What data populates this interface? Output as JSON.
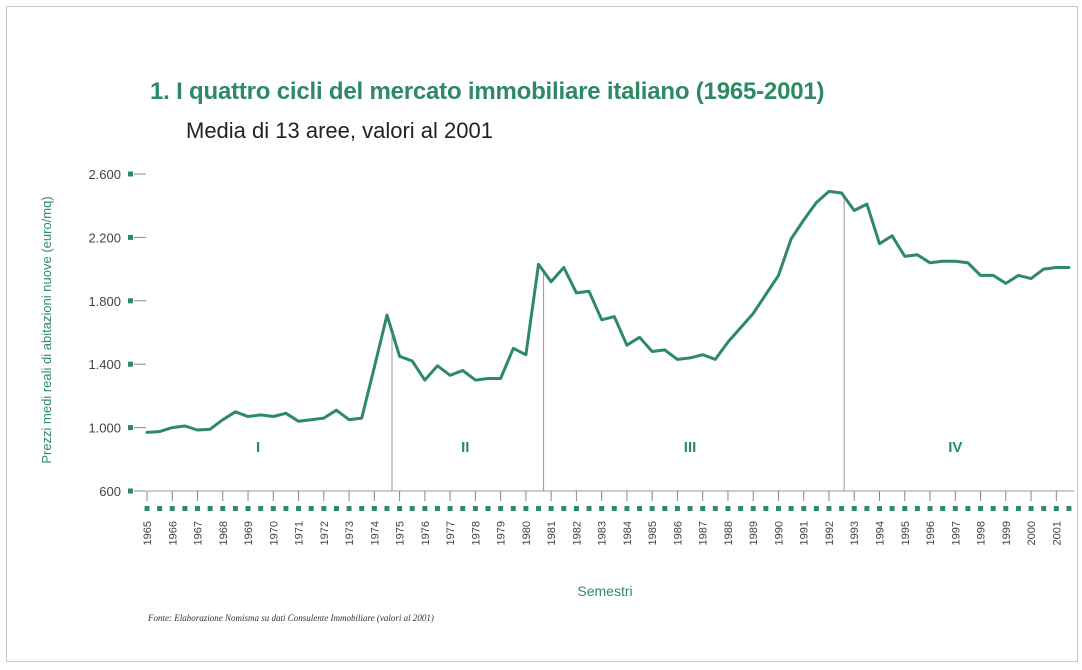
{
  "chart_data": {
    "type": "line",
    "title": "1. I quattro cicli del mercato immobiliare italiano (1965-2001)",
    "subtitle": "Media di 13 aree, valori al 2001",
    "ylabel": "Prezzi medi reali di abitazioni nuove (euro/mq)",
    "xlabel": "Semestri",
    "ylim": [
      600,
      2600
    ],
    "xlim": [
      1965,
      2001.7
    ],
    "y_ticks": [
      "600",
      "1.000",
      "1.400",
      "1.800",
      "2.200",
      "2.600"
    ],
    "y_tick_values": [
      600,
      1000,
      1400,
      1800,
      2200,
      2600
    ],
    "x_ticks": [
      "1965",
      "1966",
      "1967",
      "1968",
      "1969",
      "1970",
      "1971",
      "1972",
      "1973",
      "1974",
      "1975",
      "1976",
      "1977",
      "1978",
      "1979",
      "1980",
      "1981",
      "1982",
      "1983",
      "1984",
      "1985",
      "1986",
      "1987",
      "1988",
      "1989",
      "1990",
      "1991",
      "1992",
      "1993",
      "1994",
      "1995",
      "1996",
      "1997",
      "1998",
      "1999",
      "2000",
      "2001"
    ],
    "grid": false,
    "legend": "none",
    "series": [
      {
        "color": "#2e8a64",
        "x": [
          1965,
          1965.5,
          1966,
          1966.5,
          1967,
          1967.5,
          1968,
          1968.5,
          1969,
          1969.5,
          1970,
          1970.5,
          1971,
          1971.5,
          1972,
          1972.5,
          1973,
          1973.5,
          1974,
          1974.5,
          1975,
          1975.5,
          1976,
          1976.5,
          1977,
          1977.5,
          1978,
          1978.5,
          1979,
          1979.5,
          1980,
          1980.5,
          1981,
          1981.5,
          1982,
          1982.5,
          1983,
          1983.5,
          1984,
          1984.5,
          1985,
          1985.5,
          1986,
          1986.5,
          1987,
          1987.5,
          1988,
          1988.5,
          1989,
          1989.5,
          1990,
          1990.5,
          1991,
          1991.5,
          1992,
          1992.5,
          1993,
          1993.5,
          1994,
          1994.5,
          1995,
          1995.5,
          1996,
          1996.5,
          1997,
          1997.5,
          1998,
          1998.5,
          1999,
          1999.5,
          2000,
          2000.5,
          2001,
          2001.5
        ],
        "y": [
          970,
          975,
          1000,
          1010,
          985,
          990,
          1050,
          1100,
          1070,
          1080,
          1070,
          1090,
          1040,
          1050,
          1060,
          1110,
          1050,
          1060,
          1380,
          1710,
          1450,
          1420,
          1300,
          1390,
          1330,
          1360,
          1300,
          1310,
          1310,
          1500,
          1460,
          2030,
          1920,
          2010,
          1850,
          1860,
          1680,
          1700,
          1520,
          1570,
          1480,
          1490,
          1430,
          1440,
          1460,
          1430,
          1540,
          1630,
          1720,
          1840,
          1960,
          2190,
          2310,
          2420,
          2490,
          2480,
          2370,
          2410,
          2160,
          2210,
          2080,
          2090,
          2040,
          2050,
          2050,
          2040,
          1960,
          1960,
          1910,
          1960,
          1940,
          2000,
          2010,
          2010
        ]
      }
    ],
    "cycle_boundaries": [
      1974.7,
      1980.7,
      1992.6
    ],
    "cycle_labels": [
      {
        "label": "I",
        "x": 1969.4
      },
      {
        "label": "II",
        "x": 1977.6
      },
      {
        "label": "III",
        "x": 1986.5
      },
      {
        "label": "IV",
        "x": 1997.0
      }
    ]
  }
}
